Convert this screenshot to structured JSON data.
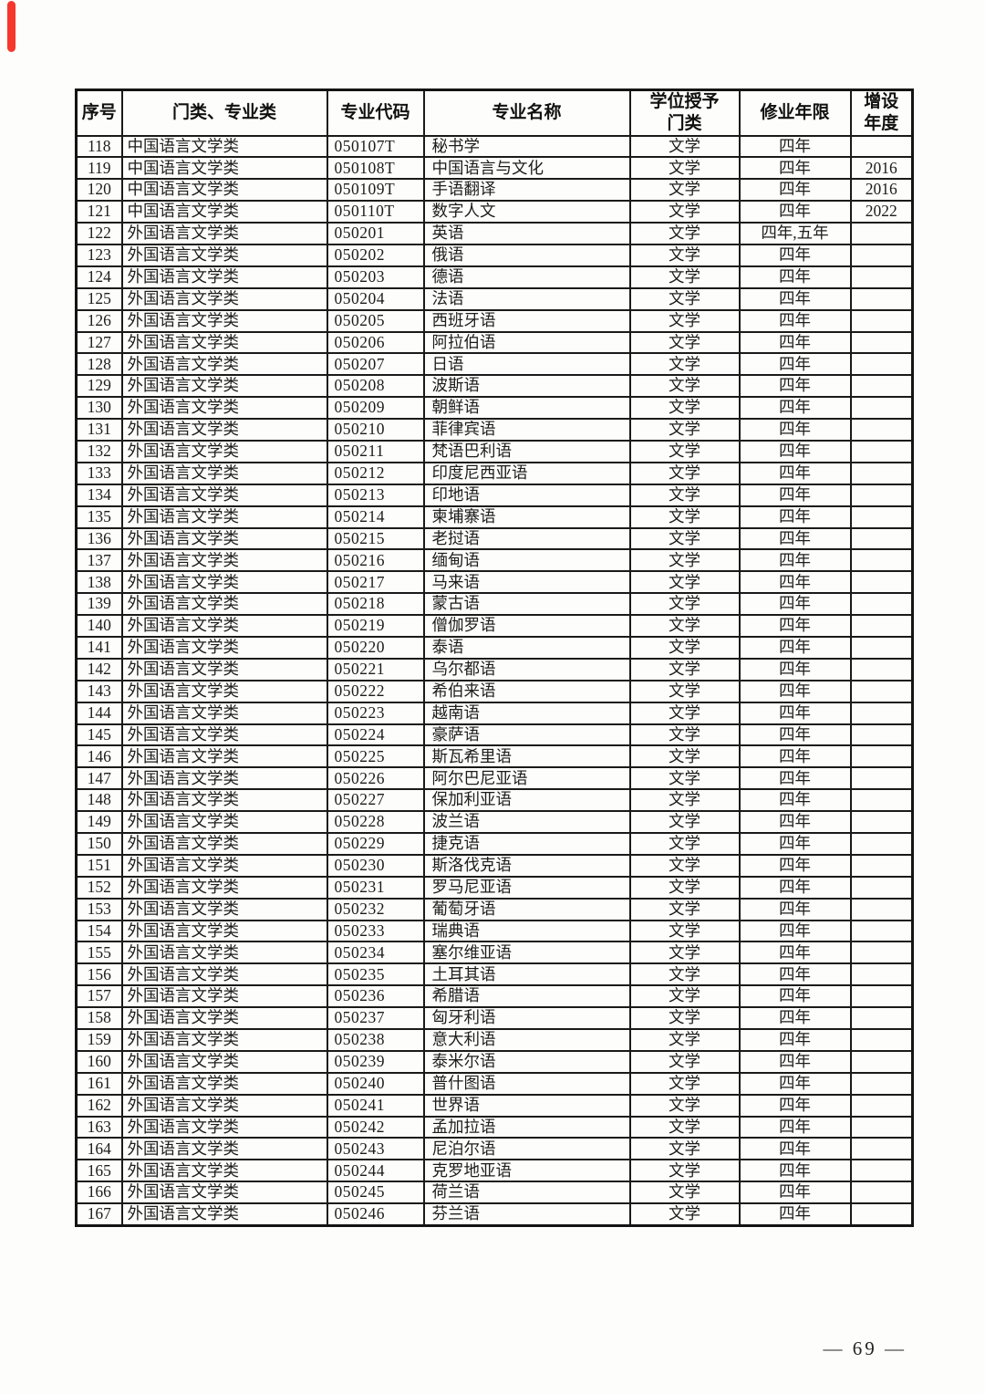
{
  "page": {
    "footer_page_number": "— 69 —"
  },
  "decorations": {
    "red_bar_color": "#f5372c"
  },
  "table": {
    "headers": [
      "序号",
      "门类、专业类",
      "专业代码",
      "专业名称",
      "学位授予\n门类",
      "修业年限",
      "增设\n年度"
    ],
    "rows": [
      [
        "118",
        "中国语言文学类",
        "050107T",
        "秘书学",
        "文学",
        "四年",
        ""
      ],
      [
        "119",
        "中国语言文学类",
        "050108T",
        "中国语言与文化",
        "文学",
        "四年",
        "2016"
      ],
      [
        "120",
        "中国语言文学类",
        "050109T",
        "手语翻译",
        "文学",
        "四年",
        "2016"
      ],
      [
        "121",
        "中国语言文学类",
        "050110T",
        "数字人文",
        "文学",
        "四年",
        "2022"
      ],
      [
        "122",
        "外国语言文学类",
        "050201",
        "英语",
        "文学",
        "四年,五年",
        ""
      ],
      [
        "123",
        "外国语言文学类",
        "050202",
        "俄语",
        "文学",
        "四年",
        ""
      ],
      [
        "124",
        "外国语言文学类",
        "050203",
        "德语",
        "文学",
        "四年",
        ""
      ],
      [
        "125",
        "外国语言文学类",
        "050204",
        "法语",
        "文学",
        "四年",
        ""
      ],
      [
        "126",
        "外国语言文学类",
        "050205",
        "西班牙语",
        "文学",
        "四年",
        ""
      ],
      [
        "127",
        "外国语言文学类",
        "050206",
        "阿拉伯语",
        "文学",
        "四年",
        ""
      ],
      [
        "128",
        "外国语言文学类",
        "050207",
        "日语",
        "文学",
        "四年",
        ""
      ],
      [
        "129",
        "外国语言文学类",
        "050208",
        "波斯语",
        "文学",
        "四年",
        ""
      ],
      [
        "130",
        "外国语言文学类",
        "050209",
        "朝鲜语",
        "文学",
        "四年",
        ""
      ],
      [
        "131",
        "外国语言文学类",
        "050210",
        "菲律宾语",
        "文学",
        "四年",
        ""
      ],
      [
        "132",
        "外国语言文学类",
        "050211",
        "梵语巴利语",
        "文学",
        "四年",
        ""
      ],
      [
        "133",
        "外国语言文学类",
        "050212",
        "印度尼西亚语",
        "文学",
        "四年",
        ""
      ],
      [
        "134",
        "外国语言文学类",
        "050213",
        "印地语",
        "文学",
        "四年",
        ""
      ],
      [
        "135",
        "外国语言文学类",
        "050214",
        "柬埔寨语",
        "文学",
        "四年",
        ""
      ],
      [
        "136",
        "外国语言文学类",
        "050215",
        "老挝语",
        "文学",
        "四年",
        ""
      ],
      [
        "137",
        "外国语言文学类",
        "050216",
        "缅甸语",
        "文学",
        "四年",
        ""
      ],
      [
        "138",
        "外国语言文学类",
        "050217",
        "马来语",
        "文学",
        "四年",
        ""
      ],
      [
        "139",
        "外国语言文学类",
        "050218",
        "蒙古语",
        "文学",
        "四年",
        ""
      ],
      [
        "140",
        "外国语言文学类",
        "050219",
        "僧伽罗语",
        "文学",
        "四年",
        ""
      ],
      [
        "141",
        "外国语言文学类",
        "050220",
        "泰语",
        "文学",
        "四年",
        ""
      ],
      [
        "142",
        "外国语言文学类",
        "050221",
        "乌尔都语",
        "文学",
        "四年",
        ""
      ],
      [
        "143",
        "外国语言文学类",
        "050222",
        "希伯来语",
        "文学",
        "四年",
        ""
      ],
      [
        "144",
        "外国语言文学类",
        "050223",
        "越南语",
        "文学",
        "四年",
        ""
      ],
      [
        "145",
        "外国语言文学类",
        "050224",
        "豪萨语",
        "文学",
        "四年",
        ""
      ],
      [
        "146",
        "外国语言文学类",
        "050225",
        "斯瓦希里语",
        "文学",
        "四年",
        ""
      ],
      [
        "147",
        "外国语言文学类",
        "050226",
        "阿尔巴尼亚语",
        "文学",
        "四年",
        ""
      ],
      [
        "148",
        "外国语言文学类",
        "050227",
        "保加利亚语",
        "文学",
        "四年",
        ""
      ],
      [
        "149",
        "外国语言文学类",
        "050228",
        "波兰语",
        "文学",
        "四年",
        ""
      ],
      [
        "150",
        "外国语言文学类",
        "050229",
        "捷克语",
        "文学",
        "四年",
        ""
      ],
      [
        "151",
        "外国语言文学类",
        "050230",
        "斯洛伐克语",
        "文学",
        "四年",
        ""
      ],
      [
        "152",
        "外国语言文学类",
        "050231",
        "罗马尼亚语",
        "文学",
        "四年",
        ""
      ],
      [
        "153",
        "外国语言文学类",
        "050232",
        "葡萄牙语",
        "文学",
        "四年",
        ""
      ],
      [
        "154",
        "外国语言文学类",
        "050233",
        "瑞典语",
        "文学",
        "四年",
        ""
      ],
      [
        "155",
        "外国语言文学类",
        "050234",
        "塞尔维亚语",
        "文学",
        "四年",
        ""
      ],
      [
        "156",
        "外国语言文学类",
        "050235",
        "土耳其语",
        "文学",
        "四年",
        ""
      ],
      [
        "157",
        "外国语言文学类",
        "050236",
        "希腊语",
        "文学",
        "四年",
        ""
      ],
      [
        "158",
        "外国语言文学类",
        "050237",
        "匈牙利语",
        "文学",
        "四年",
        ""
      ],
      [
        "159",
        "外国语言文学类",
        "050238",
        "意大利语",
        "文学",
        "四年",
        ""
      ],
      [
        "160",
        "外国语言文学类",
        "050239",
        "泰米尔语",
        "文学",
        "四年",
        ""
      ],
      [
        "161",
        "外国语言文学类",
        "050240",
        "普什图语",
        "文学",
        "四年",
        ""
      ],
      [
        "162",
        "外国语言文学类",
        "050241",
        "世界语",
        "文学",
        "四年",
        ""
      ],
      [
        "163",
        "外国语言文学类",
        "050242",
        "孟加拉语",
        "文学",
        "四年",
        ""
      ],
      [
        "164",
        "外国语言文学类",
        "050243",
        "尼泊尔语",
        "文学",
        "四年",
        ""
      ],
      [
        "165",
        "外国语言文学类",
        "050244",
        "克罗地亚语",
        "文学",
        "四年",
        ""
      ],
      [
        "166",
        "外国语言文学类",
        "050245",
        "荷兰语",
        "文学",
        "四年",
        ""
      ],
      [
        "167",
        "外国语言文学类",
        "050246",
        "芬兰语",
        "文学",
        "四年",
        ""
      ]
    ],
    "cell_names": [
      "cell-index",
      "cell-category",
      "cell-code",
      "cell-name",
      "cell-degree-category",
      "cell-duration",
      "cell-year-added"
    ]
  }
}
